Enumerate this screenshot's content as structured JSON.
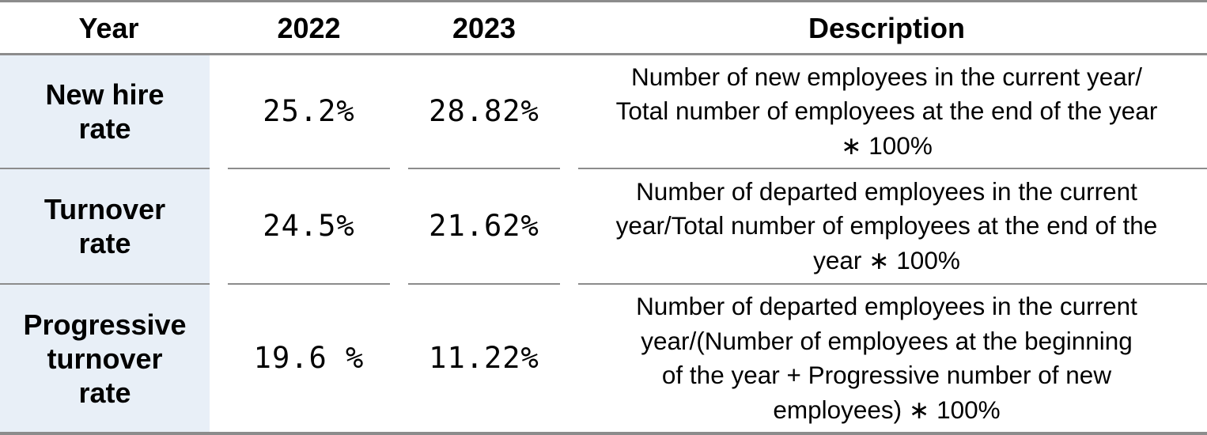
{
  "header": {
    "year": "Year",
    "col_2022": "2022",
    "col_2023": "2023",
    "description": "Description"
  },
  "rows": [
    {
      "label": "New hire\nrate",
      "v2022": "25.2%",
      "v2023": "28.82%",
      "description": "Number of new employees in the current year/\nTotal number of employees at the end of the year\n∗ 100%"
    },
    {
      "label": "Turnover\nrate",
      "v2022": "24.5%",
      "v2023": "21.62%",
      "description": "Number of departed employees in the current\nyear/Total number of employees at the end of the\nyear ∗ 100%"
    },
    {
      "label": "Progressive\nturnover\nrate",
      "v2022": "19.6 %",
      "v2023": "11.22%",
      "description": "Number of departed employees in the current\nyear/(Number of employees at the beginning\nof the year + Progressive number of new\nemployees) ∗ 100%"
    }
  ],
  "colors": {
    "row_header_bg": "#e8eff7",
    "rule": "#8c8c8c",
    "text": "#000000"
  }
}
